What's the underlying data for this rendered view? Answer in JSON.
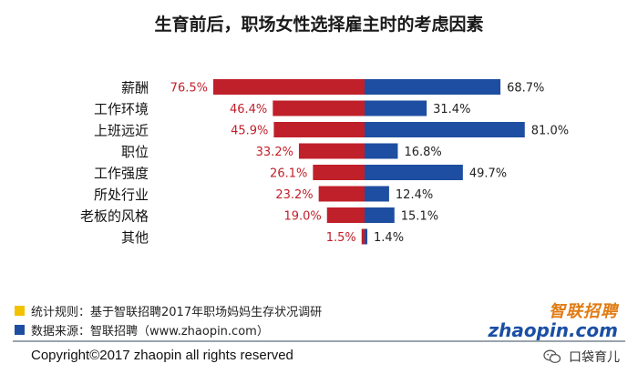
{
  "chart_data": {
    "type": "bar",
    "title": "生育前后，职场女性选择雇主时的考虑因素",
    "categories": [
      "薪酬",
      "工作环境",
      "上班远近",
      "职位",
      "工作强度",
      "所处行业",
      "老板的风格",
      "其他"
    ],
    "series": [
      {
        "values": [
          76.5,
          46.4,
          45.9,
          33.2,
          26.1,
          23.2,
          19.0,
          1.5
        ],
        "color": "#c0202a",
        "side": "left"
      },
      {
        "values": [
          68.7,
          31.4,
          81.0,
          16.8,
          49.7,
          12.4,
          15.1,
          1.4
        ],
        "color": "#1e4ea1",
        "side": "right"
      }
    ],
    "value_labels_left": [
      "76.5%",
      "46.4%",
      "45.9%",
      "33.2%",
      "26.1%",
      "23.2%",
      "19.0%",
      "1.5%"
    ],
    "value_labels_right": [
      "68.7%",
      "31.4%",
      "81.0%",
      "16.8%",
      "49.7%",
      "12.4%",
      "15.1%",
      "1.4%"
    ],
    "label_colors": {
      "left": "#c0202a",
      "right": "#222222"
    },
    "grid": false
  },
  "legend": {
    "rule_text": "统计规则：基于智联招聘2017年职场妈妈生存状况调研",
    "source_text": "数据来源：智联招聘（www.zhaopin.com）",
    "rule_color": "#f2c200",
    "source_color": "#1e4ea1"
  },
  "brand": {
    "cn": "智联招聘",
    "en": "zhaopin.com"
  },
  "footer": {
    "copyright": "Copyright©2017 zhaopin all rights reserved",
    "wechat_account": "口袋育儿"
  }
}
